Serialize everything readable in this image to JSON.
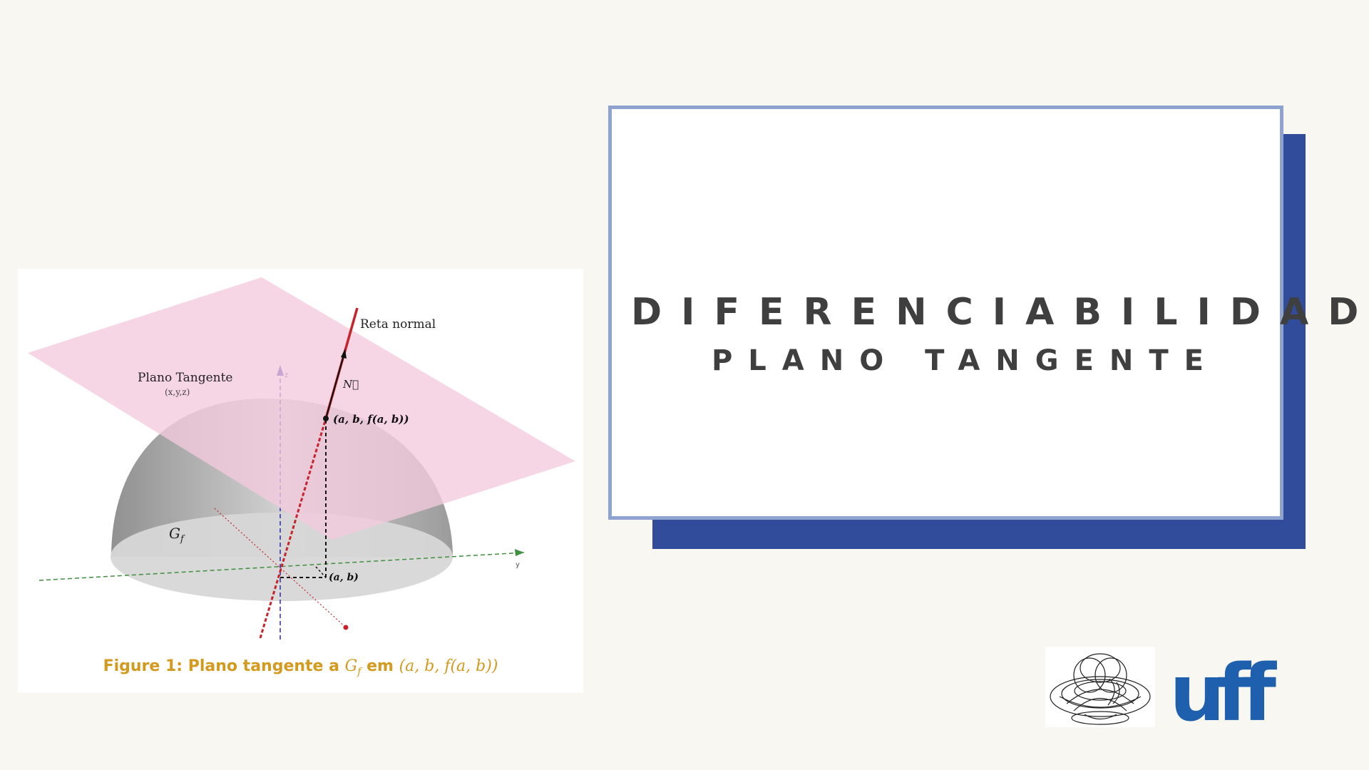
{
  "slide": {
    "title": "DIFERENCIABILIDADE",
    "subtitle": "PLANO TANGENTE"
  },
  "figure": {
    "label_reta_normal": "Reta normal",
    "label_plano_tangente": "Plano Tangente",
    "label_plano_coords": "(x,y,z)",
    "label_normal_vector": "N⃗",
    "label_point_top": "(a, b, f(a, b))",
    "label_point_base": "(a, b)",
    "label_graph": "G",
    "label_graph_sub": "f",
    "label_z_axis": "z",
    "label_y_axis": "y",
    "caption_prefix": "Figure 1:  Plano tangente a ",
    "caption_gf": "G",
    "caption_gf_sub": "f",
    "caption_mid": " em ",
    "caption_point": "(a, b, f(a, b))"
  },
  "colors": {
    "background": "#f8f7f1",
    "shadow_box": "#324c9c",
    "title_box_border": "#8ea3cf",
    "title_text": "#3f3f3f",
    "caption": "#d49a1e",
    "plane": "#f4c9dd",
    "normal_line": "#c8232c",
    "uff_logo": "#1e5fae"
  },
  "logos": {
    "left": "torus-sketch-logo",
    "right": "uff-logo"
  },
  "logo_text": "uff"
}
